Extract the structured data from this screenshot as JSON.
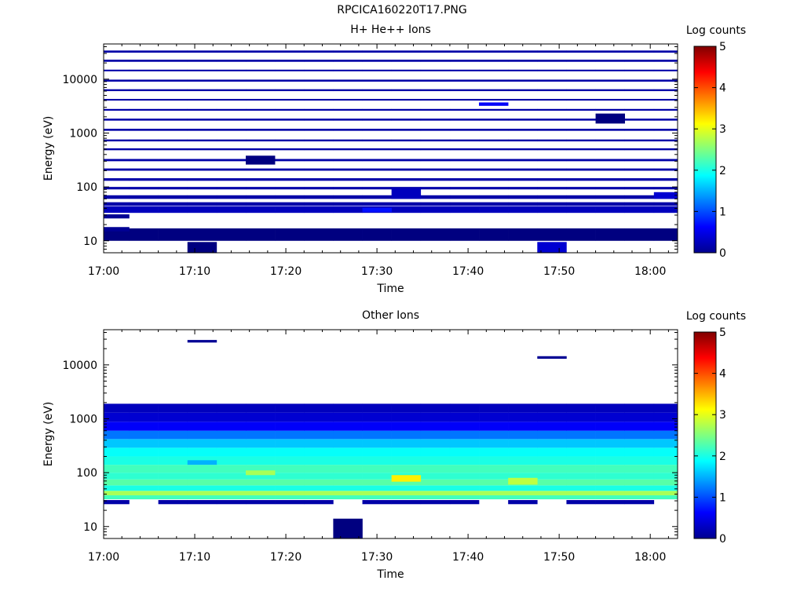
{
  "figure_title": "RPCICA160220T17.PNG",
  "chart_data": [
    {
      "type": "heatmap",
      "title": "H+ He++ Ions",
      "xlabel": "Time",
      "ylabel": "Energy (eV)",
      "x_ticks": [
        "17:00",
        "17:10",
        "17:20",
        "17:30",
        "17:40",
        "17:50",
        "18:00"
      ],
      "x_range_minutes": [
        0,
        63
      ],
      "y_scale": "log",
      "y_range": [
        6,
        45000
      ],
      "y_ticks": [
        "10",
        "100",
        "1000",
        "10000"
      ],
      "colorbar": {
        "label": "Log counts",
        "range": [
          0,
          5
        ],
        "ticks": [
          "0",
          "1",
          "2",
          "3",
          "4",
          "5"
        ]
      },
      "time_bins_minutes": [
        1.2,
        4.4,
        7.6,
        10.8,
        14.0,
        17.2,
        20.4,
        23.6,
        26.8,
        30.0,
        33.2,
        36.4,
        39.6,
        42.8,
        46.0,
        49.2,
        52.4,
        55.6,
        58.8,
        62.0
      ],
      "cells": [
        {
          "bins": [
            [
              0,
              20
            ]
          ],
          "energy": [
            10,
            17
          ],
          "logc": 0.0
        },
        {
          "bins": [
            [
              0,
              20
            ]
          ],
          "energy": [
            33,
            44
          ],
          "logc": 0.3
        },
        {
          "bins": [
            [
              0,
              1
            ]
          ],
          "energy": [
            26,
            31
          ],
          "logc": 0.1
        },
        {
          "bins": [
            [
              0,
              1
            ]
          ],
          "energy": [
            15,
            18
          ],
          "logc": 0.1
        },
        {
          "bins": [
            [
              0,
              20
            ]
          ],
          "energy": [
            45,
            52
          ],
          "logc": 0.2
        },
        {
          "bins": [
            [
              0,
              20
            ]
          ],
          "energy": [
            60,
            70
          ],
          "logc": 0.2
        },
        {
          "bins": [
            [
              0,
              20
            ]
          ],
          "energy": [
            90,
            100
          ],
          "logc": 0.2
        },
        {
          "bins": [
            [
              0,
              20
            ]
          ],
          "energy": [
            130,
            145
          ],
          "logc": 0.2
        },
        {
          "bins": [
            [
              0,
              20
            ]
          ],
          "energy": [
            200,
            220
          ],
          "logc": 0.2
        },
        {
          "bins": [
            [
              0,
              20
            ]
          ],
          "energy": [
            300,
            330
          ],
          "logc": 0.2
        },
        {
          "bins": [
            [
              0,
              20
            ]
          ],
          "energy": [
            480,
            520
          ],
          "logc": 0.2
        },
        {
          "bins": [
            [
              0,
              20
            ]
          ],
          "energy": [
            700,
            760
          ],
          "logc": 0.2
        },
        {
          "bins": [
            [
              0,
              20
            ]
          ],
          "energy": [
            1100,
            1200
          ],
          "logc": 0.2
        },
        {
          "bins": [
            [
              0,
              20
            ]
          ],
          "energy": [
            1700,
            1850
          ],
          "logc": 0.2
        },
        {
          "bins": [
            [
              0,
              20
            ]
          ],
          "energy": [
            2600,
            2800
          ],
          "logc": 0.2
        },
        {
          "bins": [
            [
              0,
              20
            ]
          ],
          "energy": [
            4000,
            4300
          ],
          "logc": 0.2
        },
        {
          "bins": [
            [
              0,
              20
            ]
          ],
          "energy": [
            6000,
            6500
          ],
          "logc": 0.2
        },
        {
          "bins": [
            [
              0,
              20
            ]
          ],
          "energy": [
            9000,
            9800
          ],
          "logc": 0.2
        },
        {
          "bins": [
            [
              0,
              20
            ]
          ],
          "energy": [
            14000,
            15000
          ],
          "logc": 0.2
        },
        {
          "bins": [
            [
              0,
              20
            ]
          ],
          "energy": [
            21000,
            23000
          ],
          "logc": 0.2
        },
        {
          "bins": [
            [
              0,
              20
            ]
          ],
          "energy": [
            31000,
            34000
          ],
          "logc": 0.2
        },
        {
          "bins": [
            [
              3,
              4
            ]
          ],
          "energy": [
            6,
            9.5
          ],
          "logc": 0.0
        },
        {
          "bins": [
            [
              15,
              16
            ]
          ],
          "energy": [
            6,
            9.5
          ],
          "logc": 0.4
        },
        {
          "bins": [
            [
              9,
              10
            ]
          ],
          "energy": [
            34,
            41
          ],
          "logc": 0.7
        },
        {
          "bins": [
            [
              10,
              11
            ]
          ],
          "energy": [
            60,
            95
          ],
          "logc": 0.3
        },
        {
          "bins": [
            [
              5,
              6
            ]
          ],
          "energy": [
            260,
            380
          ],
          "logc": 0.0
        },
        {
          "bins": [
            [
              19,
              20
            ]
          ],
          "energy": [
            60,
            80
          ],
          "logc": 0.4
        },
        {
          "bins": [
            [
              17,
              18
            ]
          ],
          "energy": [
            1500,
            2300
          ],
          "logc": 0.0
        },
        {
          "bins": [
            [
              13,
              14
            ]
          ],
          "energy": [
            3200,
            3700
          ],
          "logc": 0.6
        }
      ]
    },
    {
      "type": "heatmap",
      "title": "Other Ions",
      "xlabel": "Time",
      "ylabel": "Energy (eV)",
      "x_ticks": [
        "17:00",
        "17:10",
        "17:20",
        "17:30",
        "17:40",
        "17:50",
        "18:00"
      ],
      "x_range_minutes": [
        0,
        63
      ],
      "y_scale": "log",
      "y_range": [
        6,
        45000
      ],
      "y_ticks": [
        "10",
        "100",
        "1000",
        "10000"
      ],
      "colorbar": {
        "label": "Log counts",
        "range": [
          0,
          5
        ],
        "ticks": [
          "0",
          "1",
          "2",
          "3",
          "4",
          "5"
        ]
      },
      "time_bins_minutes": [
        1.2,
        4.4,
        7.6,
        10.8,
        14.0,
        17.2,
        20.4,
        23.6,
        26.8,
        30.0,
        33.2,
        36.4,
        39.6,
        42.8,
        46.0,
        49.2,
        52.4,
        55.6,
        58.8,
        62.0
      ],
      "cells": [
        {
          "bins": [
            [
              8,
              9
            ]
          ],
          "energy": [
            6,
            14
          ],
          "logc": 0.0
        },
        {
          "bins": [
            [
              0,
              1
            ],
            [
              2,
              8
            ],
            [
              9,
              13
            ],
            [
              14,
              15
            ],
            [
              16,
              19
            ]
          ],
          "energy": [
            26,
            31
          ],
          "logc": 0.2
        },
        {
          "bins": [
            [
              0,
              20
            ]
          ],
          "energy": [
            32,
            38
          ],
          "logc": 2.2
        },
        {
          "bins": [
            [
              0,
              20
            ]
          ],
          "energy": [
            38,
            46
          ],
          "logc": 2.7
        },
        {
          "bins": [
            [
              0,
              20
            ]
          ],
          "energy": [
            46,
            58
          ],
          "logc": 2.0
        },
        {
          "bins": [
            [
              0,
              20
            ]
          ],
          "energy": [
            58,
            75
          ],
          "logc": 2.3
        },
        {
          "bins": [
            [
              0,
              20
            ]
          ],
          "energy": [
            75,
            100
          ],
          "logc": 2.1
        },
        {
          "bins": [
            [
              0,
              20
            ]
          ],
          "energy": [
            100,
            140
          ],
          "logc": 2.2
        },
        {
          "bins": [
            [
              0,
              20
            ]
          ],
          "energy": [
            140,
            200
          ],
          "logc": 2.0
        },
        {
          "bins": [
            [
              0,
              20
            ]
          ],
          "energy": [
            200,
            290
          ],
          "logc": 1.9
        },
        {
          "bins": [
            [
              0,
              20
            ]
          ],
          "energy": [
            290,
            420
          ],
          "logc": 1.6
        },
        {
          "bins": [
            [
              0,
              20
            ]
          ],
          "energy": [
            420,
            600
          ],
          "logc": 1.2
        },
        {
          "bins": [
            [
              0,
              20
            ]
          ],
          "energy": [
            600,
            880
          ],
          "logc": 0.6
        },
        {
          "bins": [
            [
              0,
              20
            ]
          ],
          "energy": [
            880,
            1300
          ],
          "logc": 0.4
        },
        {
          "bins": [
            [
              0,
              20
            ]
          ],
          "energy": [
            1300,
            1900
          ],
          "logc": 0.3
        },
        {
          "bins": [
            [
              14,
              15
            ]
          ],
          "energy": [
            60,
            80
          ],
          "logc": 2.8
        },
        {
          "bins": [
            [
              10,
              11
            ]
          ],
          "energy": [
            68,
            90
          ],
          "logc": 3.2
        },
        {
          "bins": [
            [
              5,
              6
            ]
          ],
          "energy": [
            90,
            110
          ],
          "logc": 2.7
        },
        {
          "bins": [
            [
              3,
              4
            ]
          ],
          "energy": [
            140,
            170
          ],
          "logc": 1.5
        },
        {
          "bins": [
            [
              3,
              4
            ]
          ],
          "energy": [
            26000,
            29000
          ],
          "logc": 0.1
        },
        {
          "bins": [
            [
              15,
              16
            ]
          ],
          "energy": [
            13000,
            14500
          ],
          "logc": 0.1
        }
      ]
    }
  ]
}
